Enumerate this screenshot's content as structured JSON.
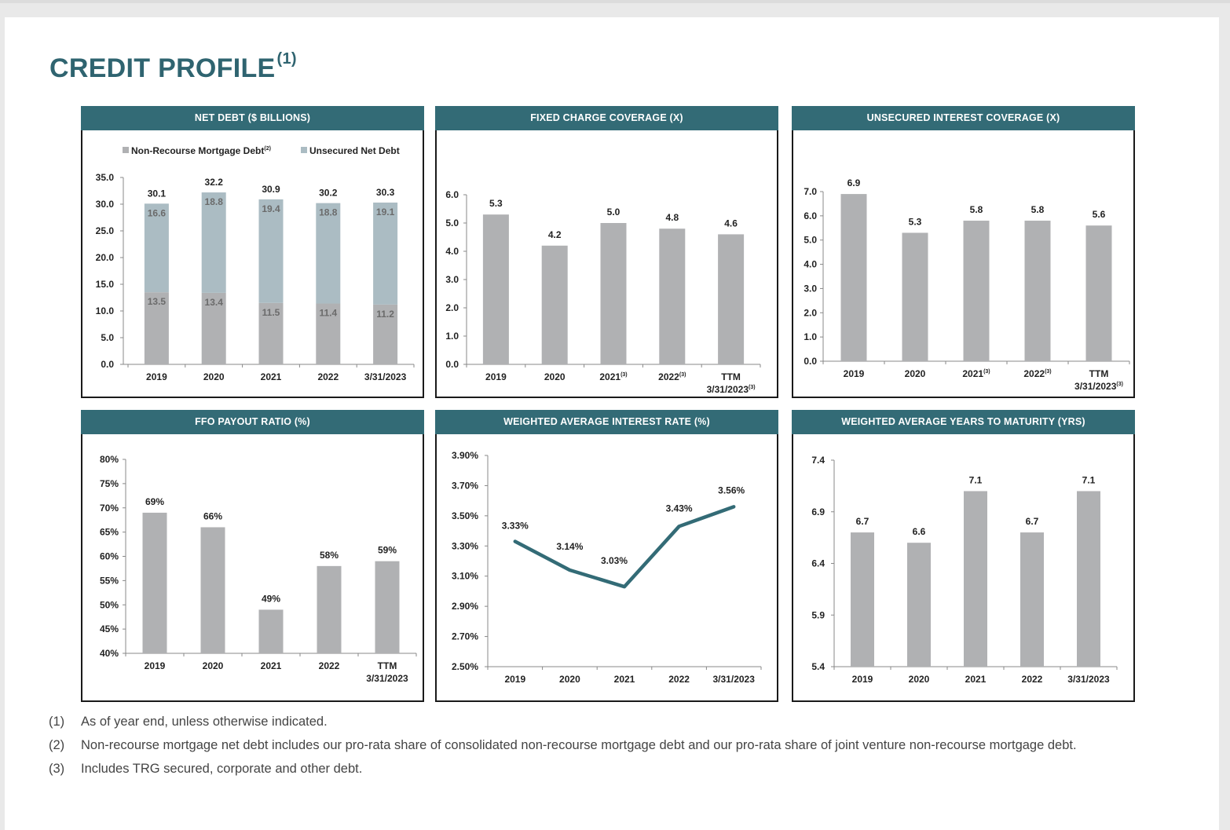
{
  "page": {
    "title": "CREDIT PROFILE",
    "title_note": "(1)"
  },
  "footnotes": [
    {
      "num": "(1)",
      "text": "As of year end, unless otherwise indicated."
    },
    {
      "num": "(2)",
      "text": "Non-recourse mortgage net debt includes our pro-rata share of consolidated non-recourse mortgage debt and our pro-rata share of joint venture non-recourse mortgage debt."
    },
    {
      "num": "(3)",
      "text": "Includes TRG secured, corporate and other debt."
    }
  ],
  "colors": {
    "header": "#336b76",
    "bar": "#b0b1b3",
    "unsecured": "#abbcc3",
    "line": "#336b76"
  },
  "chart_data": [
    {
      "id": "net-debt",
      "type": "bar",
      "stacked": true,
      "title": "NET DEBT ($ BILLIONS)",
      "categories": [
        "2019",
        "2020",
        "2021",
        "2022",
        "3/31/2023"
      ],
      "series": [
        {
          "name": "Non-Recourse Mortgage Debt",
          "name_note": "(2)",
          "values": [
            13.5,
            13.4,
            11.5,
            11.4,
            11.2
          ]
        },
        {
          "name": "Unsecured Net Debt",
          "values": [
            16.6,
            18.8,
            19.4,
            18.8,
            19.1
          ]
        }
      ],
      "totals": [
        "30.1",
        "32.2",
        "30.9",
        "30.2",
        "30.3"
      ],
      "ylim": [
        0,
        35
      ],
      "yticks": [
        "0.0",
        "5.0",
        "10.0",
        "15.0",
        "20.0",
        "25.0",
        "30.0",
        "35.0"
      ],
      "legend": "top"
    },
    {
      "id": "fixed-charge",
      "type": "bar",
      "title": "FIXED CHARGE COVERAGE (X)",
      "categories": [
        "2019",
        "2020",
        "2021",
        "2022",
        "TTM"
      ],
      "category_notes": [
        "",
        "",
        "(3)",
        "(3)",
        ""
      ],
      "category_line2": [
        "",
        "",
        "",
        "",
        "3/31/2023"
      ],
      "category_line2_notes": [
        "",
        "",
        "",
        "",
        "(3)"
      ],
      "values": [
        5.3,
        4.2,
        5.0,
        4.8,
        4.6
      ],
      "labels": [
        "5.3",
        "4.2",
        "5.0",
        "4.8",
        "4.6"
      ],
      "ylim": [
        0,
        6
      ],
      "yticks": [
        "0.0",
        "1.0",
        "2.0",
        "3.0",
        "4.0",
        "5.0",
        "6.0"
      ]
    },
    {
      "id": "unsecured-interest",
      "type": "bar",
      "title": "UNSECURED INTEREST COVERAGE (X)",
      "categories": [
        "2019",
        "2020",
        "2021",
        "2022",
        "TTM"
      ],
      "category_notes": [
        "",
        "",
        "(3)",
        "(3)",
        ""
      ],
      "category_line2": [
        "",
        "",
        "",
        "",
        "3/31/2023"
      ],
      "category_line2_notes": [
        "",
        "",
        "",
        "",
        "(3)"
      ],
      "values": [
        6.9,
        5.3,
        5.8,
        5.8,
        5.6
      ],
      "labels": [
        "6.9",
        "5.3",
        "5.8",
        "5.8",
        "5.6"
      ],
      "ylim": [
        0,
        7
      ],
      "yticks": [
        "0.0",
        "1.0",
        "2.0",
        "3.0",
        "4.0",
        "5.0",
        "6.0",
        "7.0"
      ]
    },
    {
      "id": "ffo-payout",
      "type": "bar",
      "title": "FFO PAYOUT RATIO (%)",
      "categories": [
        "2019",
        "2020",
        "2021",
        "2022",
        "TTM"
      ],
      "category_notes": [
        "",
        "",
        "",
        "",
        ""
      ],
      "category_line2": [
        "",
        "",
        "",
        "",
        "3/31/2023"
      ],
      "category_line2_notes": [
        "",
        "",
        "",
        "",
        ""
      ],
      "values": [
        69,
        66,
        49,
        58,
        59
      ],
      "labels": [
        "69%",
        "66%",
        "49%",
        "58%",
        "59%"
      ],
      "ylim": [
        40,
        80
      ],
      "yticks": [
        "40%",
        "45%",
        "50%",
        "55%",
        "60%",
        "65%",
        "70%",
        "75%",
        "80%"
      ]
    },
    {
      "id": "interest-rate",
      "type": "line",
      "title": "WEIGHTED AVERAGE INTEREST RATE (%)",
      "categories": [
        "2019",
        "2020",
        "2021",
        "2022",
        "3/31/2023"
      ],
      "values": [
        3.33,
        3.14,
        3.03,
        3.43,
        3.56
      ],
      "labels": [
        "3.33%",
        "3.14%",
        "3.03%",
        "3.43%",
        "3.56%"
      ],
      "ylim": [
        2.5,
        3.9
      ],
      "yticks": [
        "2.50%",
        "2.70%",
        "2.90%",
        "3.10%",
        "3.30%",
        "3.50%",
        "3.70%",
        "3.90%"
      ]
    },
    {
      "id": "years-to-maturity",
      "type": "bar",
      "title": "WEIGHTED AVERAGE YEARS TO MATURITY (YRS)",
      "categories": [
        "2019",
        "2020",
        "2021",
        "2022",
        "3/31/2023"
      ],
      "category_notes": [
        "",
        "",
        "",
        "",
        ""
      ],
      "category_line2": [
        "",
        "",
        "",
        "",
        ""
      ],
      "category_line2_notes": [
        "",
        "",
        "",
        "",
        ""
      ],
      "values": [
        6.7,
        6.6,
        7.1,
        6.7,
        7.1
      ],
      "labels": [
        "6.7",
        "6.6",
        "7.1",
        "6.7",
        "7.1"
      ],
      "ylim": [
        5.4,
        7.4
      ],
      "yticks": [
        "5.4",
        "5.9",
        "6.4",
        "6.9",
        "7.4"
      ]
    }
  ]
}
